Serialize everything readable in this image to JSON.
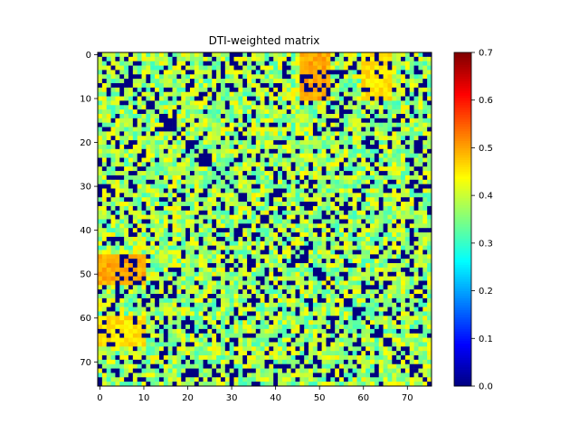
{
  "chart_data": {
    "type": "heatmap",
    "title": "DTI-weighted matrix",
    "xlabel": "",
    "ylabel": "",
    "n": 76,
    "colormap": "jet",
    "vmin": 0.0,
    "vmax": 0.7,
    "x_ticks": [
      0,
      10,
      20,
      30,
      40,
      50,
      60,
      70
    ],
    "y_ticks": [
      0,
      10,
      20,
      30,
      40,
      50,
      60,
      70
    ],
    "colorbar_ticks": [
      "0.0",
      "0.1",
      "0.2",
      "0.3",
      "0.4",
      "0.5",
      "0.6",
      "0.7"
    ],
    "x_tick_labels": [
      "0",
      "10",
      "20",
      "30",
      "40",
      "50",
      "60",
      "70"
    ],
    "y_tick_labels": [
      "0",
      "10",
      "20",
      "30",
      "40",
      "50",
      "60",
      "70"
    ],
    "diagonal_value": 0.0,
    "typical_range": [
      0.3,
      0.45
    ],
    "zero_fraction_estimate": 0.22,
    "high_value_blocks": [
      {
        "rows": [
          0,
          10
        ],
        "cols": [
          46,
          52
        ],
        "value": 0.52
      },
      {
        "rows": [
          46,
          52
        ],
        "cols": [
          0,
          10
        ],
        "value": 0.52
      },
      {
        "rows": [
          0,
          10
        ],
        "cols": [
          60,
          66
        ],
        "value": 0.48
      },
      {
        "rows": [
          60,
          66
        ],
        "cols": [
          0,
          10
        ],
        "value": 0.48
      }
    ],
    "grid": false,
    "legend": "none",
    "colorbar": "right"
  }
}
